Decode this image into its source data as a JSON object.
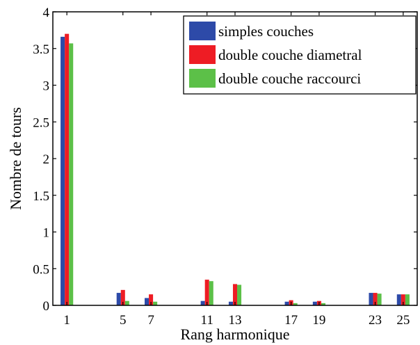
{
  "chart_data": {
    "type": "bar",
    "x": [
      1,
      5,
      7,
      11,
      13,
      17,
      19,
      23,
      25
    ],
    "xlabel": "Rang harmonique",
    "ylabel": "Nombre de tours",
    "xlim": [
      0,
      26
    ],
    "ylim": [
      0,
      4
    ],
    "yticks": [
      "0",
      "0.5",
      "1",
      "1.5",
      "2",
      "2.5",
      "3",
      "3.5",
      "4"
    ],
    "xticks": [
      "1",
      "5",
      "7",
      "11",
      "13",
      "17",
      "19",
      "23",
      "25"
    ],
    "legend_position": "top-right",
    "grid": false,
    "series": [
      {
        "name": "simples couches",
        "color": "#2d4aa8",
        "values": [
          3.66,
          0.17,
          0.1,
          0.06,
          0.05,
          0.05,
          0.05,
          0.17,
          0.15
        ]
      },
      {
        "name": "double couche diametral",
        "color": "#ee1c24",
        "values": [
          3.7,
          0.21,
          0.15,
          0.35,
          0.29,
          0.07,
          0.06,
          0.17,
          0.15
        ]
      },
      {
        "name": "double couche raccourci",
        "color": "#5cc048",
        "values": [
          3.57,
          0.06,
          0.05,
          0.33,
          0.28,
          0.03,
          0.03,
          0.16,
          0.15
        ]
      }
    ]
  }
}
